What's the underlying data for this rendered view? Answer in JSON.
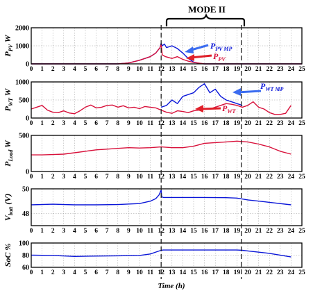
{
  "colors": {
    "blue": "#0a16d8",
    "red": "#d8103a",
    "arrow_blue": "#3b6cf0",
    "arrow_red": "#e0202a",
    "grid": "#9a9a9a"
  },
  "mode_label": "MODE II",
  "x_axis_label": "Time (h)",
  "chart_data": [
    {
      "type": "line",
      "id": "pv",
      "ylabel_main": "P",
      "ylabel_sub": "PV",
      "ylabel_unit": "W",
      "xlim": [
        0,
        25
      ],
      "ylim": [
        0,
        2000
      ],
      "yticks": [
        0,
        1000,
        2000
      ],
      "xticks": [
        0,
        1,
        2,
        3,
        4,
        5,
        6,
        7,
        8,
        9,
        10,
        11,
        12,
        13,
        14,
        15,
        16,
        17,
        18,
        19,
        20,
        21,
        22,
        23,
        24,
        25
      ],
      "annotations": [
        {
          "main": "P",
          "sub": "PV MP",
          "color": "blue"
        },
        {
          "main": "P",
          "sub": "PV",
          "color": "red"
        }
      ],
      "series": [
        {
          "color": "blue",
          "x": [
            0,
            8,
            9,
            10,
            11,
            11.5,
            11.9,
            12,
            12.1,
            12.3,
            12.5,
            13,
            13.5,
            14,
            14.5,
            15,
            15.5,
            16,
            16.5,
            17,
            25
          ],
          "y": [
            0,
            0,
            50,
            200,
            400,
            600,
            900,
            1150,
            1000,
            1100,
            900,
            1000,
            850,
            600,
            300,
            100,
            30,
            0,
            0,
            0,
            0
          ]
        },
        {
          "color": "red",
          "x": [
            0,
            8,
            9,
            10,
            11,
            11.5,
            11.9,
            12,
            12.1,
            12.4,
            13,
            13.5,
            14,
            14.5,
            15,
            16,
            17,
            25
          ],
          "y": [
            0,
            0,
            50,
            200,
            400,
            600,
            900,
            1100,
            500,
            400,
            300,
            400,
            250,
            150,
            80,
            0,
            0,
            0
          ]
        }
      ]
    },
    {
      "type": "line",
      "id": "wt",
      "ylabel_main": "P",
      "ylabel_sub": "WT",
      "ylabel_unit": "W",
      "xlim": [
        0,
        25
      ],
      "ylim": [
        0,
        1000
      ],
      "yticks": [
        0,
        500,
        1000
      ],
      "xticks": [
        0,
        1,
        2,
        3,
        4,
        5,
        6,
        7,
        8,
        9,
        10,
        11,
        12,
        13,
        14,
        15,
        16,
        17,
        18,
        19,
        20,
        21,
        22,
        23,
        24,
        25
      ],
      "annotations": [
        {
          "main": "P",
          "sub": "WT MP",
          "color": "blue"
        },
        {
          "main": "P",
          "sub": "WT",
          "color": "red"
        }
      ],
      "series": [
        {
          "color": "blue",
          "x": [
            12,
            12.5,
            13,
            13.5,
            14,
            14.5,
            15,
            15.5,
            16,
            16.5,
            17,
            17.5,
            18,
            18.5,
            19,
            19.5
          ],
          "y": [
            300,
            350,
            500,
            400,
            600,
            650,
            700,
            850,
            950,
            700,
            800,
            600,
            500,
            450,
            400,
            350
          ]
        },
        {
          "color": "red",
          "x": [
            0,
            0.5,
            1,
            1.5,
            2,
            2.5,
            3,
            3.5,
            4,
            4.5,
            5,
            5.5,
            6,
            6.5,
            7,
            7.5,
            8,
            8.5,
            9,
            9.5,
            10,
            10.5,
            11,
            11.5,
            12,
            12.5,
            13,
            13.5,
            14,
            14.5,
            15,
            15.5,
            16,
            16.5,
            17,
            17.5,
            18,
            18.5,
            19,
            19.5,
            20,
            20.5,
            21,
            21.5,
            22,
            22.5,
            23,
            23.5,
            24
          ],
          "y": [
            250,
            300,
            350,
            220,
            160,
            150,
            200,
            140,
            120,
            200,
            300,
            360,
            280,
            300,
            350,
            360,
            300,
            340,
            280,
            300,
            260,
            320,
            300,
            280,
            220,
            160,
            130,
            200,
            180,
            150,
            200,
            220,
            260,
            250,
            300,
            350,
            400,
            380,
            350,
            300,
            350,
            450,
            300,
            250,
            150,
            100,
            100,
            130,
            350
          ]
        }
      ]
    },
    {
      "type": "line",
      "id": "load",
      "ylabel_main": "P",
      "ylabel_sub": "Load",
      "ylabel_unit": "W",
      "xlim": [
        0,
        25
      ],
      "ylim": [
        0,
        500
      ],
      "yticks": [
        0,
        500
      ],
      "xticks": [
        0,
        1,
        2,
        3,
        4,
        5,
        6,
        7,
        8,
        9,
        10,
        11,
        12,
        13,
        14,
        15,
        16,
        17,
        18,
        19,
        20,
        21,
        22,
        23,
        24,
        25
      ],
      "series": [
        {
          "color": "red",
          "x": [
            0,
            1,
            2,
            3,
            4,
            5,
            6,
            7,
            8,
            9,
            10,
            11,
            12,
            13,
            14,
            15,
            16,
            17,
            18,
            19,
            20,
            21,
            22,
            23,
            24
          ],
          "y": [
            230,
            230,
            235,
            240,
            260,
            280,
            300,
            310,
            320,
            330,
            325,
            330,
            340,
            330,
            330,
            350,
            390,
            400,
            410,
            420,
            410,
            380,
            340,
            280,
            240
          ]
        }
      ]
    },
    {
      "type": "line",
      "id": "vbatt",
      "ylabel_main": "V",
      "ylabel_sub": "batt",
      "ylabel_unit": "(V)",
      "xlim": [
        0,
        25
      ],
      "ylim": [
        47,
        50
      ],
      "yticks": [
        48,
        50
      ],
      "xticks": [
        0,
        1,
        2,
        3,
        4,
        5,
        6,
        7,
        8,
        9,
        10,
        11,
        12,
        13,
        14,
        15,
        16,
        17,
        18,
        19,
        20,
        21,
        22,
        23,
        24,
        25
      ],
      "series": [
        {
          "color": "blue",
          "x": [
            0,
            2,
            4,
            6,
            8,
            10,
            11,
            11.5,
            11.8,
            12,
            12.05,
            12.2,
            14,
            16,
            18,
            19,
            20,
            22,
            24
          ],
          "y": [
            48.7,
            48.75,
            48.7,
            48.7,
            48.72,
            48.8,
            49.0,
            49.2,
            49.5,
            49.9,
            49.35,
            49.3,
            49.3,
            49.3,
            49.28,
            49.25,
            49.1,
            48.9,
            48.7
          ]
        }
      ]
    },
    {
      "type": "line",
      "id": "soc",
      "ylabel_main": "SoC",
      "ylabel_sub": "",
      "ylabel_unit": "%",
      "xlim": [
        0,
        25
      ],
      "ylim": [
        60,
        100
      ],
      "yticks": [
        60,
        80,
        100
      ],
      "xticks": [
        0,
        1,
        2,
        3,
        4,
        5,
        6,
        7,
        8,
        9,
        10,
        11,
        12,
        13,
        14,
        15,
        16,
        17,
        18,
        19,
        20,
        21,
        22,
        23,
        24,
        25
      ],
      "series": [
        {
          "color": "blue",
          "x": [
            0,
            2,
            4,
            6,
            8,
            10,
            11,
            11.5,
            12,
            12.2,
            14,
            16,
            18,
            19,
            19.5,
            20,
            22,
            24
          ],
          "y": [
            80,
            79.5,
            78,
            78.5,
            79,
            79.5,
            82,
            85,
            88,
            88.5,
            88.5,
            88.5,
            88.5,
            88.5,
            88,
            87,
            83,
            77
          ]
        }
      ]
    }
  ]
}
